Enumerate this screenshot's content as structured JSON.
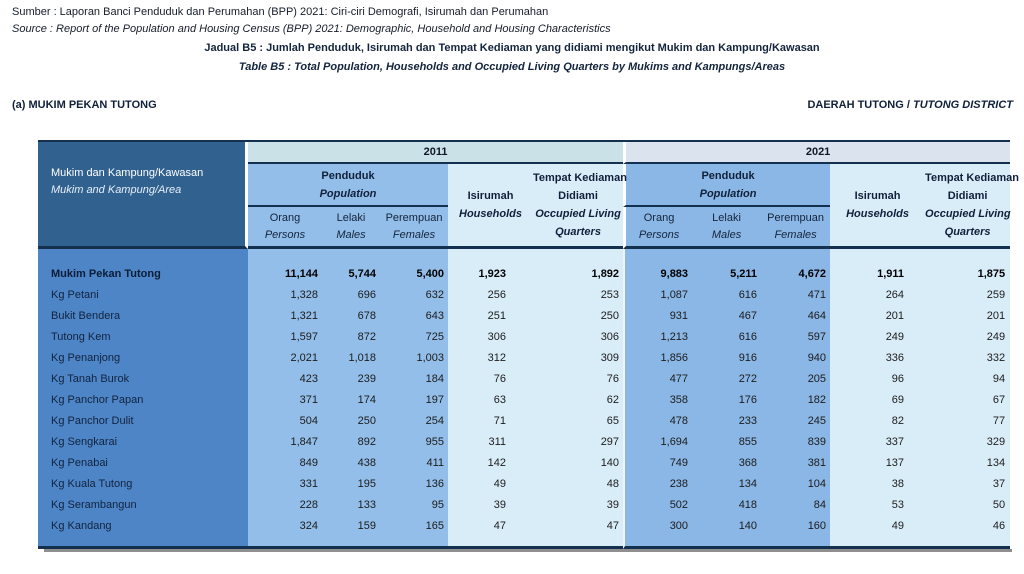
{
  "header": {
    "source_line_1": "Sumber : Laporan Banci Penduduk dan Perumahan (BPP) 2021: Ciri-ciri Demografi, Isirumah dan Perumahan",
    "source_line_2": "Source : Report of the Population and Housing Census (BPP) 2021:  Demographic, Household and Housing Characteristics",
    "title_line_1": "Jadual B5 : Jumlah Penduduk, Isirumah dan Tempat Kediaman yang didiami mengikut Mukim dan Kampung/Kawasan",
    "title_line_2": "Table B5 : Total Population, Households and Occupied Living Quarters by Mukims and Kampungs/Areas",
    "section_label": "(a) MUKIM PEKAN TUTONG",
    "district_label_normal": "DAERAH TUTONG /",
    "district_label_italic": "TUTONG DISTRICT"
  },
  "table": {
    "stub": {
      "my": "Mukim dan Kampung/Kawasan",
      "en": "Mukim and Kampung/Area"
    },
    "years": [
      "2011",
      "2021"
    ],
    "columns": {
      "population": {
        "my": "Penduduk",
        "en": "Population"
      },
      "persons": {
        "my": "Orang",
        "en": "Persons"
      },
      "males": {
        "my": "Lelaki",
        "en": "Males"
      },
      "females": {
        "my": "Perempuan",
        "en": "Females"
      },
      "households": {
        "my": "Isirumah",
        "en": "Households"
      },
      "occupied": {
        "my_1": "Tempat Kediaman",
        "my_2": "Didiami",
        "en_1": "Occupied Living",
        "en_2": "Quarters"
      }
    },
    "rows": [
      {
        "label": "Mukim Pekan Tutong",
        "bold": true,
        "values": [
          "11,144",
          "5,744",
          "5,400",
          "1,923",
          "1,892",
          "9,883",
          "5,211",
          "4,672",
          "1,911",
          "1,875"
        ]
      },
      {
        "label": "Kg Petani",
        "bold": false,
        "values": [
          "1,328",
          "696",
          "632",
          "256",
          "253",
          "1,087",
          "616",
          "471",
          "264",
          "259"
        ]
      },
      {
        "label": "Bukit Bendera",
        "bold": false,
        "values": [
          "1,321",
          "678",
          "643",
          "251",
          "250",
          "931",
          "467",
          "464",
          "201",
          "201"
        ]
      },
      {
        "label": "Tutong Kem",
        "bold": false,
        "values": [
          "1,597",
          "872",
          "725",
          "306",
          "306",
          "1,213",
          "616",
          "597",
          "249",
          "249"
        ]
      },
      {
        "label": "Kg Penanjong",
        "bold": false,
        "values": [
          "2,021",
          "1,018",
          "1,003",
          "312",
          "309",
          "1,856",
          "916",
          "940",
          "336",
          "332"
        ]
      },
      {
        "label": "Kg Tanah Burok",
        "bold": false,
        "values": [
          "423",
          "239",
          "184",
          "76",
          "76",
          "477",
          "272",
          "205",
          "96",
          "94"
        ]
      },
      {
        "label": "Kg Panchor Papan",
        "bold": false,
        "values": [
          "371",
          "174",
          "197",
          "63",
          "62",
          "358",
          "176",
          "182",
          "69",
          "67"
        ]
      },
      {
        "label": "Kg Panchor Dulit",
        "bold": false,
        "values": [
          "504",
          "250",
          "254",
          "71",
          "65",
          "478",
          "233",
          "245",
          "82",
          "77"
        ]
      },
      {
        "label": "Kg Sengkarai",
        "bold": false,
        "values": [
          "1,847",
          "892",
          "955",
          "311",
          "297",
          "1,694",
          "855",
          "839",
          "337",
          "329"
        ]
      },
      {
        "label": "Kg Penabai",
        "bold": false,
        "values": [
          "849",
          "438",
          "411",
          "142",
          "140",
          "749",
          "368",
          "381",
          "137",
          "134"
        ]
      },
      {
        "label": "Kg Kuala Tutong",
        "bold": false,
        "values": [
          "331",
          "195",
          "136",
          "49",
          "48",
          "238",
          "134",
          "104",
          "38",
          "37"
        ]
      },
      {
        "label": "Kg Serambangun",
        "bold": false,
        "values": [
          "228",
          "133",
          "95",
          "39",
          "39",
          "502",
          "418",
          "84",
          "53",
          "50"
        ]
      },
      {
        "label": "Kg Kandang",
        "bold": false,
        "values": [
          "324",
          "159",
          "165",
          "47",
          "47",
          "300",
          "140",
          "160",
          "49",
          "46"
        ]
      }
    ]
  },
  "colors": {
    "stub_header_bg": "#31618F",
    "label_column_bg": "#4D85C6",
    "population_bg_2011": "#92BEE9",
    "population_bg_2021": "#8AB7E6",
    "light_column_bg": "#D9EDF9",
    "year_band_2011_bg": "#CBE1E8",
    "year_band_2021_bg": "#DAE3EE",
    "border_navy": "#14304F",
    "shadow_gray": "#8F8F8F"
  }
}
